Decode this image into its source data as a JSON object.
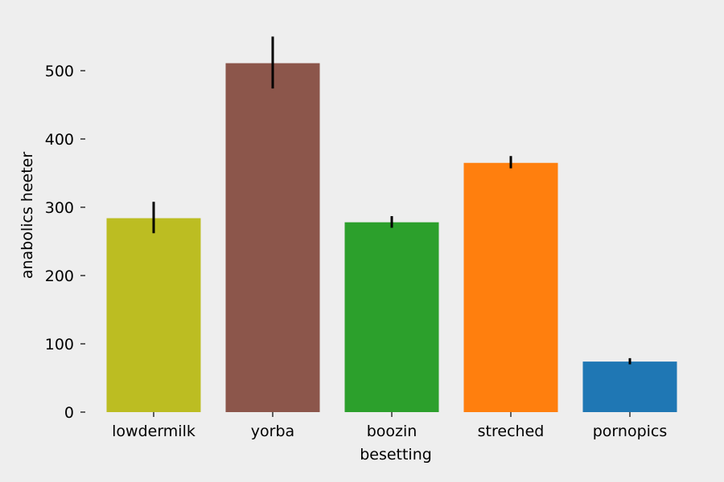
{
  "chart_data": {
    "type": "bar",
    "title": "",
    "xlabel": "besetting",
    "ylabel": "anabolics heeter",
    "categories": [
      "lowdermilk",
      "yorba",
      "boozin",
      "streched",
      "pornopics"
    ],
    "values": [
      284,
      511,
      278,
      365,
      74
    ],
    "error_low": [
      262,
      474,
      270,
      357,
      70
    ],
    "error_high": [
      308,
      550,
      287,
      375,
      79
    ],
    "colors": [
      "#bcbd22",
      "#8c564b",
      "#2ca02c",
      "#ff7f0e",
      "#1f77b4"
    ],
    "error_color": "#000000",
    "yticks": [
      0,
      100,
      200,
      300,
      400,
      500
    ],
    "ylim": [
      0,
      580
    ],
    "grid": false,
    "legend": "none"
  }
}
